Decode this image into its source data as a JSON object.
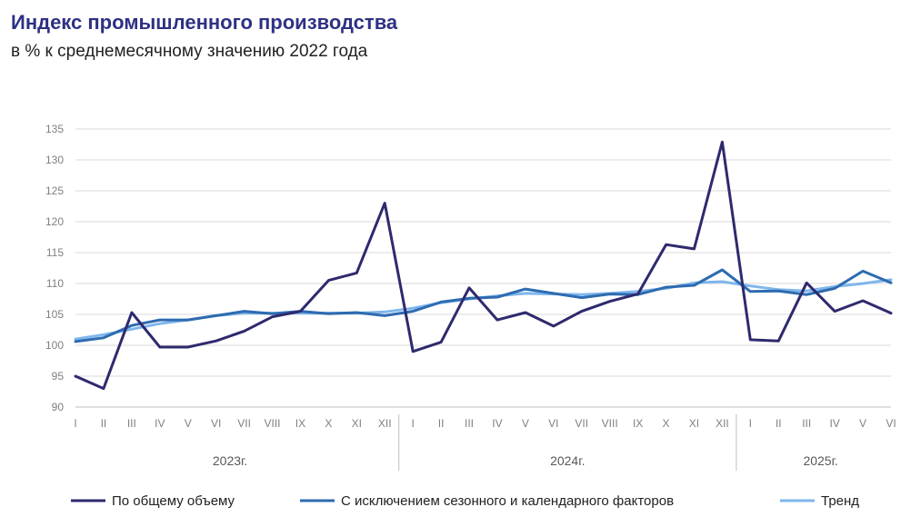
{
  "header": {
    "title": "Индекс промышленного производства",
    "subtitle": "в % к среднемесячному значению 2022 года"
  },
  "chart_data": {
    "type": "line",
    "ylim": [
      90,
      135
    ],
    "yticks": [
      90,
      95,
      100,
      105,
      110,
      115,
      120,
      125,
      130,
      135
    ],
    "grid": true,
    "legend_position": "bottom",
    "categories": [
      "I",
      "II",
      "III",
      "IV",
      "V",
      "VI",
      "VII",
      "VIII",
      "IX",
      "X",
      "XI",
      "XII",
      "I",
      "II",
      "III",
      "IV",
      "V",
      "VI",
      "VII",
      "VIII",
      "IX",
      "X",
      "XI",
      "XII",
      "I",
      "II",
      "III",
      "IV",
      "V",
      "VI"
    ],
    "years": [
      {
        "label": "2023г.",
        "months": 12
      },
      {
        "label": "2024г.",
        "months": 12
      },
      {
        "label": "2025г.",
        "months": 6
      }
    ],
    "series": [
      {
        "name": "По общему объему",
        "color": "#2e2a6e",
        "values": [
          95.0,
          93.0,
          105.3,
          99.7,
          99.7,
          100.7,
          102.3,
          104.6,
          105.5,
          110.5,
          111.7,
          123.0,
          99.0,
          100.5,
          109.3,
          104.1,
          105.3,
          103.1,
          105.5,
          107.1,
          108.3,
          116.3,
          115.6,
          132.9,
          100.9,
          100.7,
          110.1,
          105.5,
          107.2,
          105.2
        ]
      },
      {
        "name": "С исключением сезонного и календарного факторов",
        "color": "#2e6bb0",
        "values": [
          100.6,
          101.2,
          103.2,
          104.1,
          104.1,
          104.8,
          105.5,
          105.1,
          105.5,
          105.1,
          105.3,
          104.8,
          105.5,
          107.0,
          107.6,
          107.8,
          109.1,
          108.4,
          107.7,
          108.3,
          108.2,
          109.4,
          109.7,
          112.2,
          108.7,
          108.8,
          108.2,
          109.2,
          112.0,
          110.1
        ]
      },
      {
        "name": "Тренд",
        "color": "#7fb6ec",
        "values": [
          101.0,
          101.7,
          102.6,
          103.5,
          104.1,
          104.8,
          105.2,
          105.2,
          105.2,
          105.2,
          105.2,
          105.4,
          106.0,
          106.9,
          107.5,
          108.0,
          108.4,
          108.3,
          108.2,
          108.4,
          108.7,
          109.2,
          110.1,
          110.3,
          109.6,
          109.0,
          108.8,
          109.5,
          110.0,
          110.6
        ]
      }
    ]
  }
}
